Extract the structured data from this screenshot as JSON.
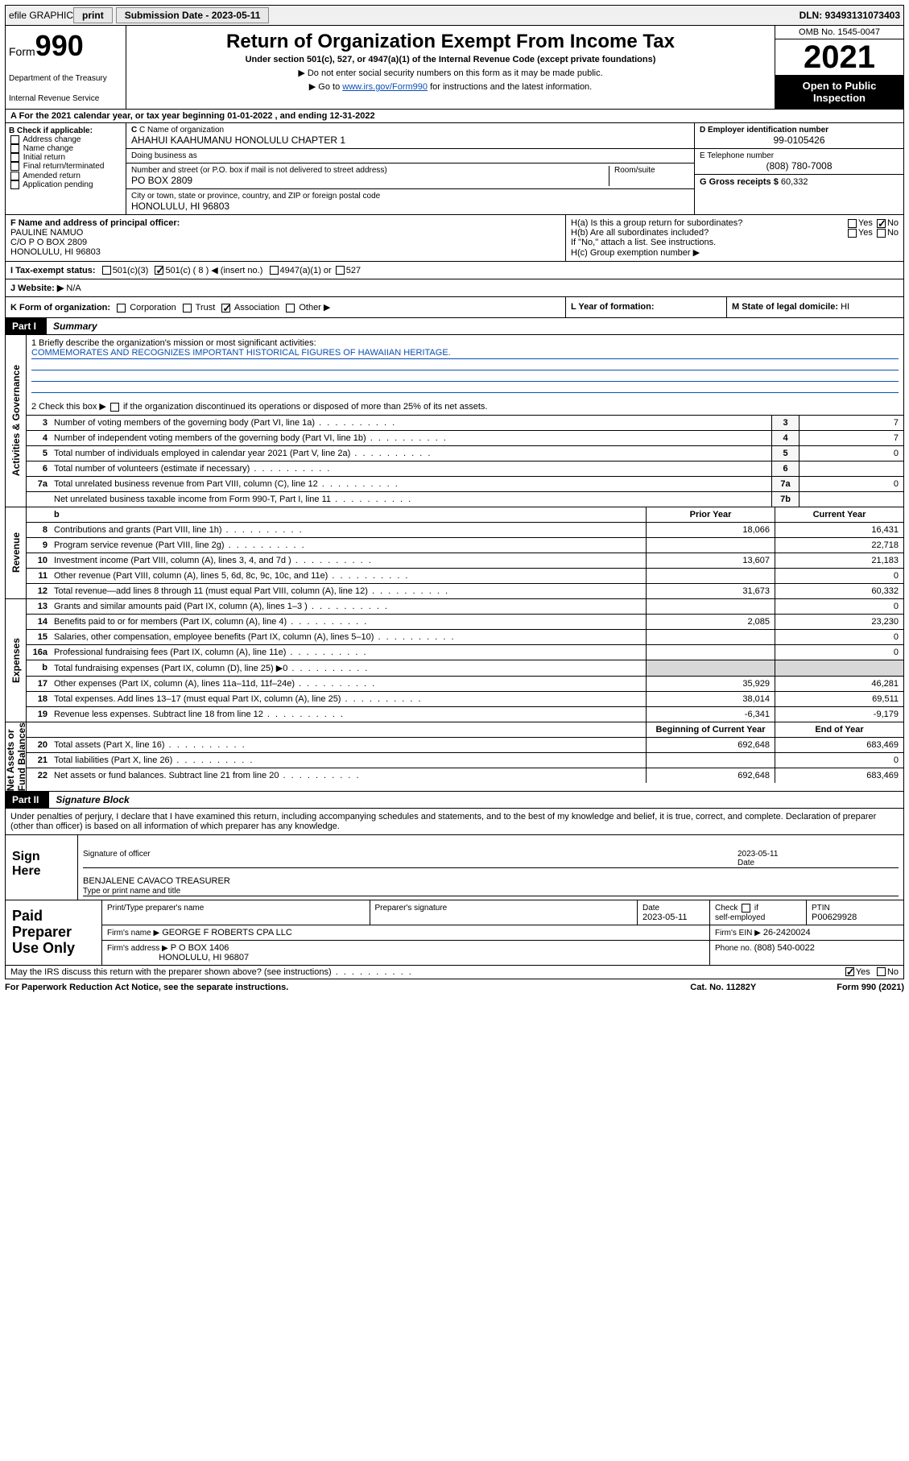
{
  "colors": {
    "text": "#000000",
    "bg": "#ffffff",
    "link": "#0b4fb5",
    "shade": "#d8d8d8",
    "blackbar": "#000000",
    "topbar_bg": "#f0f0f0"
  },
  "topbar": {
    "efile": "efile GRAPHIC",
    "print": "print",
    "sub_label": "Submission Date - 2023-05-11",
    "dln": "DLN: 93493131073403"
  },
  "header": {
    "form_label": "Form",
    "form_no": "990",
    "title": "Return of Organization Exempt From Income Tax",
    "sub": "Under section 501(c), 527, or 4947(a)(1) of the Internal Revenue Code (except private foundations)",
    "note1": "▶ Do not enter social security numbers on this form as it may be made public.",
    "note2_pre": "▶ Go to ",
    "note2_link": "www.irs.gov/Form990",
    "note2_post": " for instructions and the latest information.",
    "dept": "Department of the Treasury",
    "irs": "Internal Revenue Service",
    "omb": "OMB No. 1545-0047",
    "year": "2021",
    "open": "Open to Public Inspection"
  },
  "line_a": "A For the 2021 calendar year, or tax year beginning 01-01-2022   , and ending 12-31-2022",
  "section_b": {
    "title": "B Check if applicable:",
    "items": [
      "Address change",
      "Name change",
      "Initial return",
      "Final return/terminated",
      "Amended return",
      "Application pending"
    ]
  },
  "section_c": {
    "name_label": "C Name of organization",
    "name": "AHAHUI KAAHUMANU HONOLULU CHAPTER 1",
    "dba_label": "Doing business as",
    "dba": "",
    "street_label": "Number and street (or P.O. box if mail is not delivered to street address)",
    "room_label": "Room/suite",
    "street": "PO BOX 2809",
    "city_label": "City or town, state or province, country, and ZIP or foreign postal code",
    "city": "HONOLULU, HI  96803"
  },
  "section_d": {
    "ein_label": "D Employer identification number",
    "ein": "99-0105426",
    "phone_label": "E Telephone number",
    "phone": "(808) 780-7008",
    "gross_label": "G Gross receipts $",
    "gross": "60,332"
  },
  "section_f": {
    "label": "F Name and address of principal officer:",
    "name": "PAULINE NAMUO",
    "addr1": "C/O P O BOX 2809",
    "addr2": "HONOLULU, HI  96803"
  },
  "section_h": {
    "ha": "H(a)  Is this a group return for subordinates?",
    "ha_yes": "Yes",
    "ha_no": "No",
    "hb": "H(b)  Are all subordinates included?",
    "hb_note": "If \"No,\" attach a list. See instructions.",
    "hc": "H(c)  Group exemption number ▶"
  },
  "row_i": {
    "label": "I   Tax-exempt status:",
    "o1": "501(c)(3)",
    "o2": "501(c) ( 8 ) ◀ (insert no.)",
    "o3": "4947(a)(1) or",
    "o4": "527"
  },
  "row_j": {
    "label": "J   Website: ▶",
    "val": "N/A"
  },
  "row_k": {
    "left_label": "K Form of organization:",
    "opts": [
      "Corporation",
      "Trust",
      "Association",
      "Other ▶"
    ],
    "checked_idx": 2,
    "year_label": "L Year of formation:",
    "year_val": "",
    "state_label": "M State of legal domicile:",
    "state_val": "HI"
  },
  "part1": {
    "label": "Part I",
    "title": "Summary"
  },
  "mission": {
    "q1": "1   Briefly describe the organization's mission or most significant activities:",
    "text": "COMMEMORATES AND RECOGNIZES IMPORTANT HISTORICAL FIGURES OF HAWAIIAN HERITAGE.",
    "q2_pre": "2   Check this box ▶",
    "q2_post": " if the organization discontinued its operations or disposed of more than 25% of its net assets."
  },
  "gov_lines": [
    {
      "n": "3",
      "t": "Number of voting members of the governing body (Part VI, line 1a)",
      "box": "3",
      "v": "7"
    },
    {
      "n": "4",
      "t": "Number of independent voting members of the governing body (Part VI, line 1b)",
      "box": "4",
      "v": "7"
    },
    {
      "n": "5",
      "t": "Total number of individuals employed in calendar year 2021 (Part V, line 2a)",
      "box": "5",
      "v": "0"
    },
    {
      "n": "6",
      "t": "Total number of volunteers (estimate if necessary)",
      "box": "6",
      "v": ""
    },
    {
      "n": "7a",
      "t": "Total unrelated business revenue from Part VIII, column (C), line 12",
      "box": "7a",
      "v": "0"
    },
    {
      "n": "",
      "t": "Net unrelated business taxable income from Form 990-T, Part I, line 11",
      "box": "7b",
      "v": ""
    }
  ],
  "rev_head": {
    "prior": "Prior Year",
    "curr": "Current Year"
  },
  "rev_lines": [
    {
      "n": "8",
      "t": "Contributions and grants (Part VIII, line 1h)",
      "p": "18,066",
      "c": "16,431"
    },
    {
      "n": "9",
      "t": "Program service revenue (Part VIII, line 2g)",
      "p": "",
      "c": "22,718"
    },
    {
      "n": "10",
      "t": "Investment income (Part VIII, column (A), lines 3, 4, and 7d )",
      "p": "13,607",
      "c": "21,183"
    },
    {
      "n": "11",
      "t": "Other revenue (Part VIII, column (A), lines 5, 6d, 8c, 9c, 10c, and 11e)",
      "p": "",
      "c": "0"
    },
    {
      "n": "12",
      "t": "Total revenue—add lines 8 through 11 (must equal Part VIII, column (A), line 12)",
      "p": "31,673",
      "c": "60,332"
    }
  ],
  "exp_lines": [
    {
      "n": "13",
      "t": "Grants and similar amounts paid (Part IX, column (A), lines 1–3 )",
      "p": "",
      "c": "0"
    },
    {
      "n": "14",
      "t": "Benefits paid to or for members (Part IX, column (A), line 4)",
      "p": "2,085",
      "c": "23,230"
    },
    {
      "n": "15",
      "t": "Salaries, other compensation, employee benefits (Part IX, column (A), lines 5–10)",
      "p": "",
      "c": "0"
    },
    {
      "n": "16a",
      "t": "Professional fundraising fees (Part IX, column (A), line 11e)",
      "p": "",
      "c": "0"
    },
    {
      "n": "b",
      "t": "Total fundraising expenses (Part IX, column (D), line 25) ▶0",
      "p": "shade",
      "c": "shade"
    },
    {
      "n": "17",
      "t": "Other expenses (Part IX, column (A), lines 11a–11d, 11f–24e)",
      "p": "35,929",
      "c": "46,281"
    },
    {
      "n": "18",
      "t": "Total expenses. Add lines 13–17 (must equal Part IX, column (A), line 25)",
      "p": "38,014",
      "c": "69,511"
    },
    {
      "n": "19",
      "t": "Revenue less expenses. Subtract line 18 from line 12",
      "p": "-6,341",
      "c": "-9,179"
    }
  ],
  "na_head": {
    "prior": "Beginning of Current Year",
    "curr": "End of Year"
  },
  "na_lines": [
    {
      "n": "20",
      "t": "Total assets (Part X, line 16)",
      "p": "692,648",
      "c": "683,469"
    },
    {
      "n": "21",
      "t": "Total liabilities (Part X, line 26)",
      "p": "",
      "c": "0"
    },
    {
      "n": "22",
      "t": "Net assets or fund balances. Subtract line 21 from line 20",
      "p": "692,648",
      "c": "683,469"
    }
  ],
  "vtabs": {
    "gov": "Activities & Governance",
    "rev": "Revenue",
    "exp": "Expenses",
    "na": "Net Assets or\nFund Balances"
  },
  "part2": {
    "label": "Part II",
    "title": "Signature Block"
  },
  "declare": "Under penalties of perjury, I declare that I have examined this return, including accompanying schedules and statements, and to the best of my knowledge and belief, it is true, correct, and complete. Declaration of preparer (other than officer) is based on all information of which preparer has any knowledge.",
  "sign": {
    "label": "Sign Here",
    "sig_label": "Signature of officer",
    "date_label": "Date",
    "date": "2023-05-11",
    "typed": "BENJALENE CAVACO TREASURER",
    "typed_label": "Type or print name and title"
  },
  "prep": {
    "label": "Paid Preparer Use Only",
    "h1": "Print/Type preparer's name",
    "h2": "Preparer's signature",
    "h3": "Date",
    "h4": "Check          if self-employed",
    "h5": "PTIN",
    "date": "2023-05-11",
    "ptin": "P00629928",
    "firm_label": "Firm's name      ▶",
    "firm": "GEORGE F ROBERTS CPA LLC",
    "ein_label": "Firm's EIN ▶",
    "ein": "26-2420024",
    "addr_label": "Firm's address ▶",
    "addr1": "P O BOX 1406",
    "addr2": "HONOLULU, HI  96807",
    "phone_label": "Phone no.",
    "phone": "(808) 540-0022"
  },
  "footer": {
    "q": "May the IRS discuss this return with the preparer shown above? (see instructions)",
    "yes": "Yes",
    "no": "No"
  },
  "paperwork": {
    "left": "For Paperwork Reduction Act Notice, see the separate instructions.",
    "mid": "Cat. No. 11282Y",
    "right": "Form 990 (2021)"
  }
}
